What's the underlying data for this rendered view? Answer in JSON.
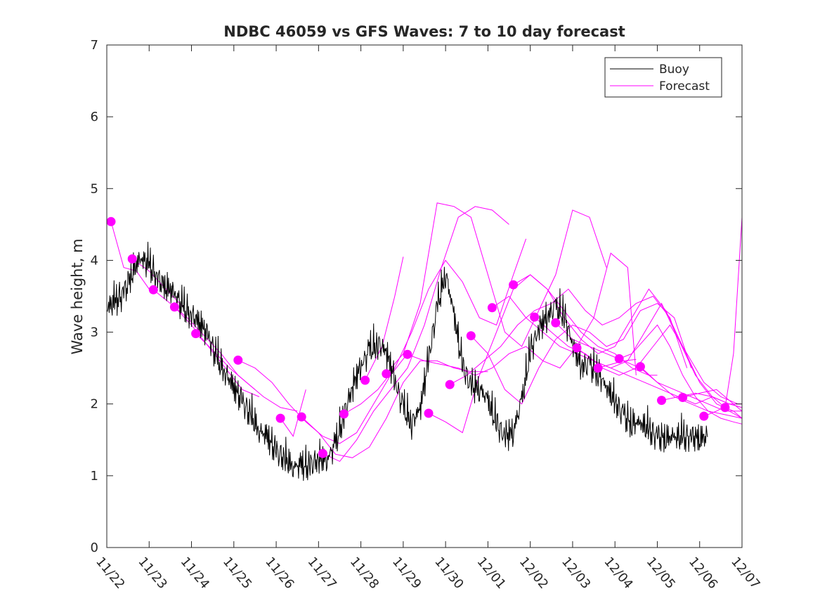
{
  "chart_data": {
    "type": "line",
    "title": "NDBC 46059 vs GFS Waves: 7 to 10 day forecast",
    "xlabel": "",
    "ylabel": "Wave height, m",
    "xlim": [
      0,
      15
    ],
    "ylim": [
      0,
      7
    ],
    "x_tick_values": [
      0,
      1,
      2,
      3,
      4,
      5,
      6,
      7,
      8,
      9,
      10,
      11,
      12,
      13,
      14,
      15
    ],
    "x_tick_labels": [
      "11/22",
      "11/23",
      "11/24",
      "11/25",
      "11/26",
      "11/27",
      "11/28",
      "11/29",
      "11/30",
      "12/01",
      "12/02",
      "12/03",
      "12/04",
      "12/05",
      "12/06",
      "12/07"
    ],
    "y_ticks": [
      0,
      1,
      2,
      3,
      4,
      5,
      6,
      7
    ],
    "legend": {
      "position": "top-right",
      "entries": [
        "Buoy",
        "Forecast"
      ]
    },
    "colors": {
      "buoy": "#000000",
      "forecast": "#ff00ff"
    },
    "series": [
      {
        "name": "Buoy",
        "x": [
          0,
          0.2,
          0.4,
          0.6,
          0.8,
          1.0,
          1.2,
          1.4,
          1.6,
          1.8,
          2.0,
          2.2,
          2.4,
          2.6,
          2.8,
          3.0,
          3.2,
          3.4,
          3.6,
          3.8,
          4.0,
          4.2,
          4.4,
          4.6,
          4.8,
          5.0,
          5.2,
          5.4,
          5.6,
          5.8,
          6.0,
          6.2,
          6.4,
          6.6,
          6.8,
          7.0,
          7.2,
          7.4,
          7.6,
          7.8,
          8.0,
          8.2,
          8.4,
          8.6,
          8.8,
          9.0,
          9.2,
          9.4,
          9.6,
          9.8,
          10.0,
          10.2,
          10.4,
          10.6,
          10.8,
          11.0,
          11.2,
          11.4,
          11.6,
          11.8,
          12.0,
          12.2,
          12.4,
          12.6,
          12.8,
          13.0,
          13.2,
          13.4,
          13.6,
          13.8,
          14.0,
          14.2
        ],
        "values": [
          3.3,
          3.4,
          3.5,
          3.8,
          4.0,
          3.9,
          3.7,
          3.6,
          3.5,
          3.3,
          3.2,
          3.1,
          2.9,
          2.6,
          2.4,
          2.2,
          2.0,
          1.8,
          1.6,
          1.5,
          1.3,
          1.2,
          1.1,
          1.1,
          1.1,
          1.2,
          1.2,
          1.4,
          1.8,
          2.2,
          2.5,
          2.7,
          2.8,
          2.7,
          2.3,
          1.9,
          1.7,
          1.9,
          2.6,
          3.3,
          3.8,
          3.2,
          2.5,
          2.2,
          2.2,
          2.0,
          1.7,
          1.5,
          1.6,
          2.0,
          2.7,
          3.0,
          3.2,
          3.3,
          3.2,
          2.8,
          2.5,
          2.5,
          2.4,
          2.2,
          2.0,
          1.8,
          1.7,
          1.7,
          1.6,
          1.5,
          1.5,
          1.5,
          1.5,
          1.5,
          1.5,
          1.5
        ]
      },
      {
        "name": "Forecast",
        "x": [
          0.1,
          0.4,
          0.7,
          1.0
        ],
        "values": [
          4.54,
          3.9,
          3.85,
          3.6
        ]
      },
      {
        "name": "Forecast",
        "x": [
          0.6,
          1.0,
          1.4,
          1.8
        ],
        "values": [
          4.02,
          3.85,
          3.6,
          3.35
        ]
      },
      {
        "name": "Forecast",
        "x": [
          1.1,
          1.5,
          1.9,
          2.3,
          2.7,
          3.1,
          3.5
        ],
        "values": [
          3.59,
          3.4,
          3.2,
          2.95,
          2.7,
          2.4,
          2.2
        ]
      },
      {
        "name": "Forecast",
        "x": [
          1.6,
          2.0,
          2.4,
          2.8,
          3.2,
          3.6
        ],
        "values": [
          3.35,
          3.1,
          2.8,
          2.5,
          2.2,
          2.1
        ]
      },
      {
        "name": "Forecast",
        "x": [
          2.1,
          2.5,
          2.9,
          3.3,
          3.7,
          4.1,
          4.5
        ],
        "values": [
          2.98,
          2.75,
          2.5,
          2.3,
          2.1,
          1.95,
          1.9
        ]
      },
      {
        "name": "Forecast",
        "x": [
          3.1,
          3.5,
          3.9,
          4.3,
          4.7,
          5.1,
          5.5,
          5.9,
          6.3,
          6.7,
          7.1
        ],
        "values": [
          2.61,
          2.5,
          2.3,
          2.0,
          1.75,
          1.55,
          1.45,
          1.6,
          2.0,
          2.4,
          2.7
        ]
      },
      {
        "name": "Forecast",
        "x": [
          4.1,
          4.4,
          4.7
        ],
        "values": [
          1.8,
          1.55,
          2.2
        ]
      },
      {
        "name": "Forecast",
        "x": [
          4.6,
          5.0,
          5.4,
          5.8,
          6.2,
          6.6,
          7.0,
          7.4,
          7.8,
          8.2,
          8.6,
          9.0
        ],
        "values": [
          1.82,
          1.6,
          1.3,
          1.25,
          1.4,
          1.8,
          2.3,
          2.6,
          2.6,
          2.5,
          2.45,
          2.45
        ]
      },
      {
        "name": "Forecast",
        "x": [
          5.1,
          5.5,
          5.9,
          6.3,
          6.7,
          7.1,
          7.5,
          7.9,
          8.3,
          8.7,
          9.1,
          9.5
        ],
        "values": [
          1.31,
          1.2,
          1.5,
          1.9,
          2.2,
          2.5,
          3.1,
          3.9,
          4.6,
          4.75,
          4.7,
          4.5
        ]
      },
      {
        "name": "Forecast",
        "x": [
          5.6,
          6.0,
          6.4,
          6.8,
          7.2,
          7.6,
          8.0,
          8.4,
          8.8,
          9.2,
          9.6,
          9.9
        ],
        "values": [
          1.86,
          2.0,
          2.2,
          2.5,
          3.0,
          3.6,
          4.0,
          3.7,
          3.2,
          3.1,
          3.8,
          4.3
        ]
      },
      {
        "name": "Forecast",
        "x": [
          6.1,
          6.5,
          6.8,
          7.0
        ],
        "values": [
          2.33,
          2.8,
          3.5,
          4.05
        ]
      },
      {
        "name": "Forecast",
        "x": [
          6.6,
          7.0,
          7.4,
          7.8,
          8.2,
          8.6,
          9.0,
          9.4,
          9.8,
          10.2,
          10.6,
          11.0,
          11.4,
          11.8
        ],
        "values": [
          2.42,
          2.7,
          3.4,
          4.8,
          4.75,
          4.6,
          3.8,
          3.0,
          2.8,
          3.3,
          3.8,
          4.7,
          4.6,
          3.9
        ]
      },
      {
        "name": "Forecast",
        "x": [
          7.1,
          7.5,
          7.9,
          8.3,
          8.7,
          9.1,
          9.5,
          9.9,
          10.3,
          10.7,
          11.1,
          11.5,
          11.9,
          12.3,
          12.5
        ],
        "values": [
          2.69,
          2.6,
          2.55,
          2.5,
          2.4,
          2.5,
          2.7,
          2.8,
          2.6,
          2.5,
          2.8,
          3.2,
          4.1,
          3.9,
          2.4
        ]
      },
      {
        "name": "Forecast",
        "x": [
          7.6,
          8.0,
          8.4,
          8.8,
          9.2,
          9.6,
          10.0,
          10.4,
          10.8,
          11.2,
          11.6,
          12.0,
          12.4,
          12.8,
          13.0
        ],
        "values": [
          1.87,
          1.75,
          1.6,
          2.4,
          3.0,
          3.6,
          3.8,
          3.6,
          3.3,
          3.0,
          2.8,
          2.7,
          2.5,
          2.4,
          2.4
        ]
      },
      {
        "name": "Forecast",
        "x": [
          8.1,
          8.5,
          8.9,
          9.3,
          9.7,
          10.1,
          10.5,
          10.9,
          11.3,
          11.7,
          12.1,
          12.5,
          12.9,
          13.3,
          13.7
        ],
        "values": [
          2.27,
          2.4,
          2.6,
          2.8,
          3.1,
          3.3,
          3.4,
          3.6,
          3.3,
          3.1,
          3.2,
          3.4,
          3.5,
          3.2,
          2.5
        ]
      },
      {
        "name": "Forecast",
        "x": [
          8.6,
          9.0,
          9.4,
          9.8,
          10.2,
          10.6,
          11.0,
          11.4,
          11.8,
          12.2,
          12.6,
          13.0,
          13.4,
          13.8
        ],
        "values": [
          2.95,
          2.7,
          2.2,
          2.0,
          2.5,
          2.9,
          3.1,
          3.0,
          2.8,
          2.9,
          3.3,
          3.4,
          3.2,
          2.5
        ]
      },
      {
        "name": "Forecast",
        "x": [
          9.1,
          9.5,
          9.9,
          10.3,
          10.7,
          11.1,
          11.5,
          11.9,
          12.3,
          12.7,
          13.1,
          13.5,
          13.9,
          14.3,
          14.7,
          15.0
        ],
        "values": [
          3.34,
          3.5,
          3.2,
          3.0,
          2.8,
          2.7,
          2.6,
          2.5,
          2.6,
          3.0,
          3.4,
          2.9,
          2.4,
          2.1,
          1.9,
          1.8
        ]
      },
      {
        "name": "Forecast",
        "x": [
          9.6,
          10.0,
          10.4,
          10.8,
          11.2,
          11.6,
          12.0,
          12.4,
          12.8,
          13.2,
          13.6,
          14.0,
          14.4,
          14.8,
          15.0
        ],
        "values": [
          3.66,
          3.8,
          3.6,
          3.2,
          2.9,
          2.7,
          2.8,
          3.2,
          3.6,
          3.3,
          2.8,
          2.3,
          2.0,
          1.9,
          1.8
        ]
      },
      {
        "name": "Forecast",
        "x": [
          10.1,
          10.5,
          10.9,
          11.3,
          11.7,
          12.1,
          12.5,
          12.9,
          13.3,
          13.7,
          14.1,
          14.5,
          14.9
        ],
        "values": [
          3.21,
          3.0,
          2.8,
          2.7,
          2.5,
          2.4,
          2.5,
          2.8,
          3.1,
          2.7,
          2.3,
          2.1,
          2.0
        ]
      },
      {
        "name": "Forecast",
        "x": [
          10.6,
          11.0,
          11.4,
          11.8,
          12.2,
          12.6,
          13.0,
          13.4,
          13.8,
          14.2,
          14.6,
          15.0
        ],
        "values": [
          3.13,
          2.9,
          2.8,
          2.7,
          2.6,
          2.5,
          2.3,
          2.1,
          2.0,
          1.9,
          1.85,
          1.8
        ]
      },
      {
        "name": "Forecast",
        "x": [
          11.1,
          11.5,
          11.9,
          12.3,
          12.7,
          13.1,
          13.5,
          13.9,
          14.3,
          14.7,
          15.0
        ],
        "values": [
          2.78,
          2.6,
          2.5,
          2.4,
          2.3,
          2.2,
          2.1,
          2.0,
          2.1,
          2.0,
          1.95
        ]
      },
      {
        "name": "Forecast",
        "x": [
          11.6,
          11.9,
          12.2,
          12.5
        ],
        "values": [
          2.5,
          2.55,
          2.6,
          2.62
        ]
      },
      {
        "name": "Forecast",
        "x": [
          12.1,
          12.4,
          12.7,
          13.0,
          13.3,
          13.6,
          13.9,
          14.2,
          14.5,
          14.8,
          15.0
        ],
        "values": [
          2.63,
          2.7,
          2.9,
          3.1,
          2.8,
          2.4,
          2.1,
          1.9,
          1.8,
          1.75,
          1.72
        ]
      },
      {
        "name": "Forecast",
        "x": [
          12.6,
          13.0,
          13.4,
          13.8,
          14.2,
          14.6,
          15.0
        ],
        "values": [
          2.52,
          2.3,
          2.2,
          2.1,
          2.0,
          1.9,
          1.9
        ]
      },
      {
        "name": "Forecast",
        "x": [
          13.1,
          13.5,
          13.9,
          14.3,
          14.7,
          15.0
        ],
        "values": [
          2.05,
          2.1,
          2.15,
          2.1,
          2.0,
          1.95
        ]
      },
      {
        "name": "Forecast",
        "x": [
          13.6,
          14.0,
          14.4,
          14.8,
          15.0
        ],
        "values": [
          2.09,
          2.15,
          2.2,
          2.0,
          1.9
        ]
      },
      {
        "name": "Forecast",
        "x": [
          14.1,
          14.4,
          14.7,
          15.0
        ],
        "values": [
          1.83,
          1.9,
          2.0,
          2.0
        ]
      },
      {
        "name": "Forecast",
        "x": [
          14.6,
          14.8,
          15.0
        ],
        "values": [
          1.95,
          2.7,
          4.6
        ]
      }
    ]
  }
}
